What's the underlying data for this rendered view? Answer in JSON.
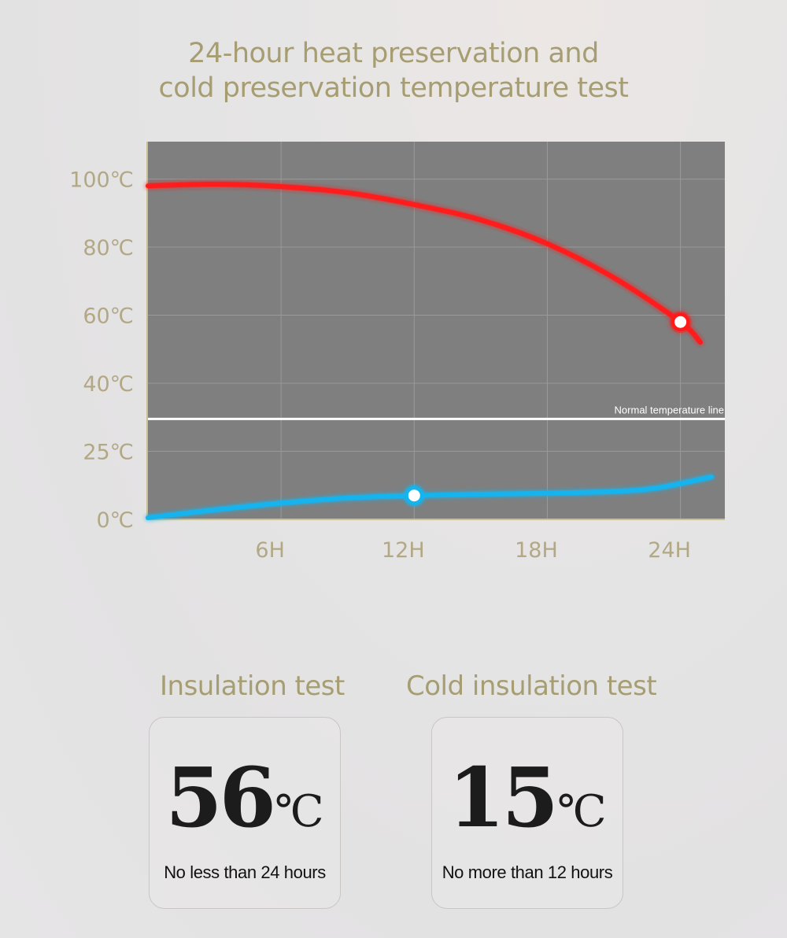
{
  "title_lines": [
    "24-hour heat preservation and",
    "cold preservation temperature test"
  ],
  "chart_data": {
    "type": "line",
    "y_tick_labels": [
      "100℃",
      "80℃",
      "60℃",
      "40℃",
      "25℃",
      "0℃"
    ],
    "x_tick_labels": [
      "6H",
      "12H",
      "18H",
      "24H"
    ],
    "x_ticks": [
      6,
      12,
      18,
      24
    ],
    "xlim": [
      0,
      26
    ],
    "ylim": [
      0,
      111
    ],
    "grid": true,
    "series": [
      {
        "color": "#ff1a1a",
        "x": [
          0,
          3,
          6,
          9,
          12,
          15,
          18,
          21,
          24,
          24.9
        ],
        "y": [
          98,
          98.5,
          97.8,
          96,
          92.5,
          88,
          81,
          71,
          58,
          52
        ],
        "marker_x": 24,
        "marker_y": 58
      },
      {
        "color": "#14b4ef",
        "x": [
          0,
          3,
          6,
          9,
          12,
          15,
          18,
          21,
          23,
          25.4
        ],
        "y": [
          0.5,
          2.8,
          4.8,
          6.3,
          7.0,
          7.4,
          7.7,
          8.2,
          9.3,
          12.5
        ],
        "marker_x": 12,
        "marker_y": 7
      }
    ],
    "reference_line": {
      "y": 29.5,
      "label": "Normal temperature line",
      "color": "#ffffff"
    }
  },
  "tests": [
    {
      "title": "Insulation test",
      "value": "56",
      "unit": "℃",
      "caption": "No less than 24 hours"
    },
    {
      "title": "Cold insulation test",
      "value": "15",
      "unit": "℃",
      "caption": "No more than 12 hours"
    }
  ]
}
